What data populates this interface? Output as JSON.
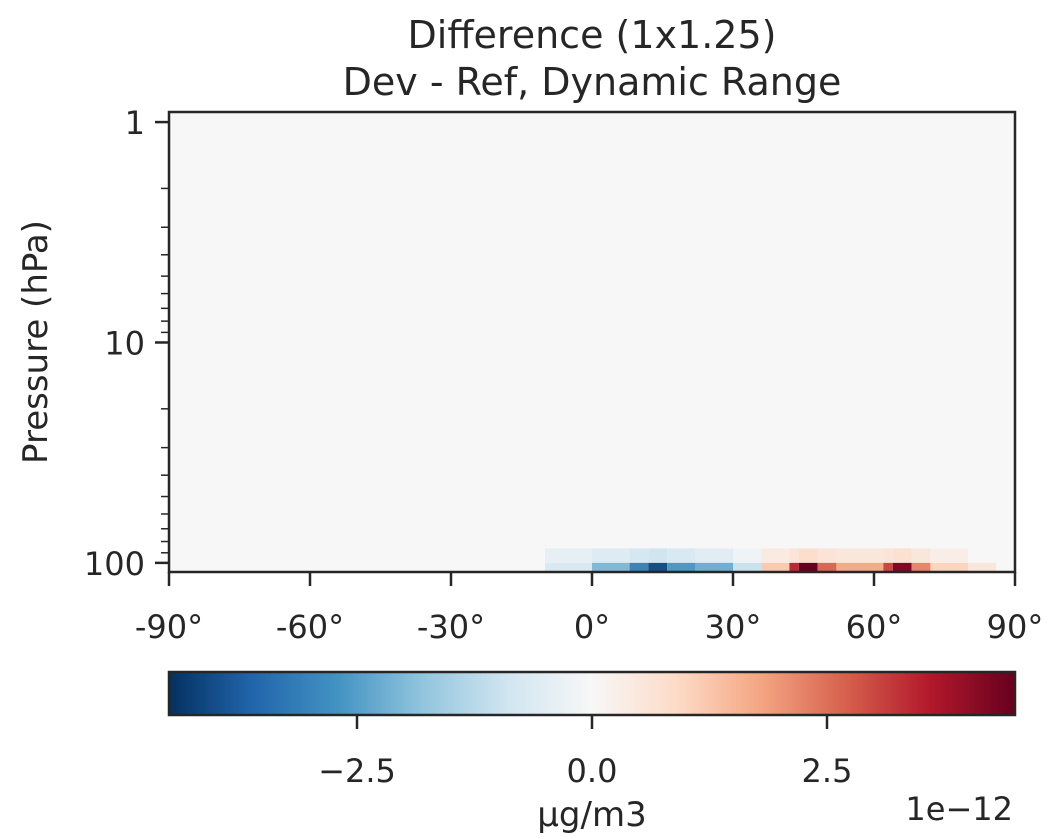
{
  "chart_data": {
    "type": "heatmap",
    "title_line1": "Difference (1x1.25)",
    "title_line2": "Dev - Ref, Dynamic Range",
    "ylabel": "Pressure (hPa)",
    "xlabel": "",
    "x_ticks": [
      {
        "value": -90,
        "label": "-90°"
      },
      {
        "value": -60,
        "label": "-60°"
      },
      {
        "value": -30,
        "label": "-30°"
      },
      {
        "value": 0,
        "label": "0°"
      },
      {
        "value": 30,
        "label": "30°"
      },
      {
        "value": 60,
        "label": "60°"
      },
      {
        "value": 90,
        "label": "90°"
      }
    ],
    "y_scale": "log",
    "y_inverted": true,
    "y_ticks": [
      {
        "value": 1,
        "label": "1"
      },
      {
        "value": 10,
        "label": "10"
      },
      {
        "value": 100,
        "label": "100"
      }
    ],
    "xlim": [
      -90,
      90
    ],
    "ylim": [
      110,
      0.9
    ],
    "colormap": "RdBu_r",
    "colormap_colors": [
      "#053061",
      "#2166ac",
      "#4393c3",
      "#92c5de",
      "#d1e5f0",
      "#f7f7f7",
      "#fddbc7",
      "#f4a582",
      "#d6604d",
      "#b2182b",
      "#67001f"
    ],
    "colorbar": {
      "range": [
        -4.5e-12,
        4.5e-12
      ],
      "ticks": [
        {
          "value": -2.5e-12,
          "label": "−2.5"
        },
        {
          "value": 0,
          "label": "0.0"
        },
        {
          "value": 2.5e-12,
          "label": "2.5"
        }
      ],
      "label": "µg/m3",
      "multiplier_label": "1e−12"
    },
    "cells": [
      {
        "lat0": -10,
        "lat1": 0,
        "p_top": 86,
        "p_bot": 100,
        "value": -4e-13
      },
      {
        "lat0": -10,
        "lat1": 0,
        "p_top": 100,
        "p_bot": 110,
        "value": -7e-13
      },
      {
        "lat0": 0,
        "lat1": 8,
        "p_top": 86,
        "p_bot": 100,
        "value": -6e-13
      },
      {
        "lat0": 0,
        "lat1": 8,
        "p_top": 100,
        "p_bot": 110,
        "value": -2e-12
      },
      {
        "lat0": 8,
        "lat1": 12,
        "p_top": 86,
        "p_bot": 100,
        "value": -8e-13
      },
      {
        "lat0": 8,
        "lat1": 12,
        "p_top": 100,
        "p_bot": 110,
        "value": -3e-12
      },
      {
        "lat0": 12,
        "lat1": 16,
        "p_top": 86,
        "p_bot": 100,
        "value": -9e-13
      },
      {
        "lat0": 12,
        "lat1": 16,
        "p_top": 100,
        "p_bot": 110,
        "value": -4e-12
      },
      {
        "lat0": 16,
        "lat1": 22,
        "p_top": 86,
        "p_bot": 100,
        "value": -7e-13
      },
      {
        "lat0": 16,
        "lat1": 22,
        "p_top": 100,
        "p_bot": 110,
        "value": -2.6e-12
      },
      {
        "lat0": 22,
        "lat1": 30,
        "p_top": 86,
        "p_bot": 100,
        "value": -5e-13
      },
      {
        "lat0": 22,
        "lat1": 30,
        "p_top": 100,
        "p_bot": 110,
        "value": -2.2e-12
      },
      {
        "lat0": 30,
        "lat1": 36,
        "p_top": 86,
        "p_bot": 100,
        "value": -2e-13
      },
      {
        "lat0": 30,
        "lat1": 36,
        "p_top": 100,
        "p_bot": 110,
        "value": -1e-12
      },
      {
        "lat0": 36,
        "lat1": 42,
        "p_top": 86,
        "p_bot": 100,
        "value": 4e-13
      },
      {
        "lat0": 36,
        "lat1": 42,
        "p_top": 100,
        "p_bot": 110,
        "value": 1.2e-12
      },
      {
        "lat0": 42,
        "lat1": 44,
        "p_top": 86,
        "p_bot": 100,
        "value": 6e-13
      },
      {
        "lat0": 42,
        "lat1": 44,
        "p_top": 100,
        "p_bot": 110,
        "value": 3.4e-12
      },
      {
        "lat0": 44,
        "lat1": 48,
        "p_top": 86,
        "p_bot": 100,
        "value": 8e-13
      },
      {
        "lat0": 44,
        "lat1": 48,
        "p_top": 100,
        "p_bot": 110,
        "value": 4.5e-12
      },
      {
        "lat0": 48,
        "lat1": 52,
        "p_top": 86,
        "p_bot": 100,
        "value": 6e-13
      },
      {
        "lat0": 48,
        "lat1": 52,
        "p_top": 100,
        "p_bot": 110,
        "value": 2.6e-12
      },
      {
        "lat0": 52,
        "lat1": 62,
        "p_top": 86,
        "p_bot": 100,
        "value": 5e-13
      },
      {
        "lat0": 52,
        "lat1": 62,
        "p_top": 100,
        "p_bot": 110,
        "value": 1.7e-12
      },
      {
        "lat0": 62,
        "lat1": 64,
        "p_top": 86,
        "p_bot": 100,
        "value": 6e-13
      },
      {
        "lat0": 62,
        "lat1": 64,
        "p_top": 100,
        "p_bot": 110,
        "value": 3e-12
      },
      {
        "lat0": 64,
        "lat1": 68,
        "p_top": 86,
        "p_bot": 100,
        "value": 7e-13
      },
      {
        "lat0": 64,
        "lat1": 68,
        "p_top": 100,
        "p_bot": 110,
        "value": 4.2e-12
      },
      {
        "lat0": 68,
        "lat1": 72,
        "p_top": 86,
        "p_bot": 100,
        "value": 5e-13
      },
      {
        "lat0": 68,
        "lat1": 72,
        "p_top": 100,
        "p_bot": 110,
        "value": 2.2e-12
      },
      {
        "lat0": 72,
        "lat1": 80,
        "p_top": 86,
        "p_bot": 100,
        "value": 3e-13
      },
      {
        "lat0": 72,
        "lat1": 80,
        "p_top": 100,
        "p_bot": 110,
        "value": 1e-12
      },
      {
        "lat0": 80,
        "lat1": 86,
        "p_top": 100,
        "p_bot": 110,
        "value": 5e-13
      }
    ]
  }
}
